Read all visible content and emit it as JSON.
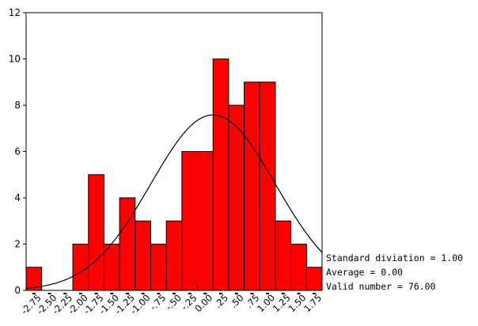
{
  "chart_data": {
    "type": "bar",
    "x_ticks": [
      "-2.75",
      "-2.50",
      "-2.25",
      "-2.00",
      "-1.75",
      "-1.50",
      "-1.25",
      "-1.00",
      "-.75",
      "-.50",
      "-.25",
      "0.00",
      ".25",
      ".50",
      ".75",
      "1.00",
      "1.25",
      "1.50",
      "1.75"
    ],
    "bins": [
      {
        "from": -3.0,
        "to": -2.75,
        "count": 1
      },
      {
        "from": -2.75,
        "to": -2.5,
        "count": 0
      },
      {
        "from": -2.5,
        "to": -2.25,
        "count": 0
      },
      {
        "from": -2.25,
        "to": -2.0,
        "count": 2
      },
      {
        "from": -2.0,
        "to": -1.75,
        "count": 5
      },
      {
        "from": -1.75,
        "to": -1.5,
        "count": 2
      },
      {
        "from": -1.5,
        "to": -1.25,
        "count": 4
      },
      {
        "from": -1.25,
        "to": -1.0,
        "count": 3
      },
      {
        "from": -1.0,
        "to": -0.75,
        "count": 2
      },
      {
        "from": -0.75,
        "to": -0.5,
        "count": 3
      },
      {
        "from": -0.5,
        "to": -0.25,
        "count": 6
      },
      {
        "from": -0.25,
        "to": 0.0,
        "count": 6
      },
      {
        "from": 0.0,
        "to": 0.25,
        "count": 10
      },
      {
        "from": 0.25,
        "to": 0.5,
        "count": 8
      },
      {
        "from": 0.5,
        "to": 0.75,
        "count": 9
      },
      {
        "from": 0.75,
        "to": 1.0,
        "count": 9
      },
      {
        "from": 1.0,
        "to": 1.25,
        "count": 3
      },
      {
        "from": 1.25,
        "to": 1.5,
        "count": 2
      },
      {
        "from": 1.5,
        "to": 1.75,
        "count": 1
      }
    ],
    "ylim": [
      0,
      12
    ],
    "y_ticks": [
      0,
      2,
      4,
      6,
      8,
      10,
      12
    ],
    "xlim": [
      -3.0,
      1.75
    ],
    "normal_curve": {
      "mean": 0.0,
      "sd": 1.0,
      "n": 76,
      "bin_width": 0.25
    },
    "bar_color": "#ff0000",
    "grid": false
  },
  "stats": {
    "std_line": "Standard diviation = 1.00",
    "avg_line": "Average = 0.00",
    "n_line": "Valid number = 76.00"
  }
}
